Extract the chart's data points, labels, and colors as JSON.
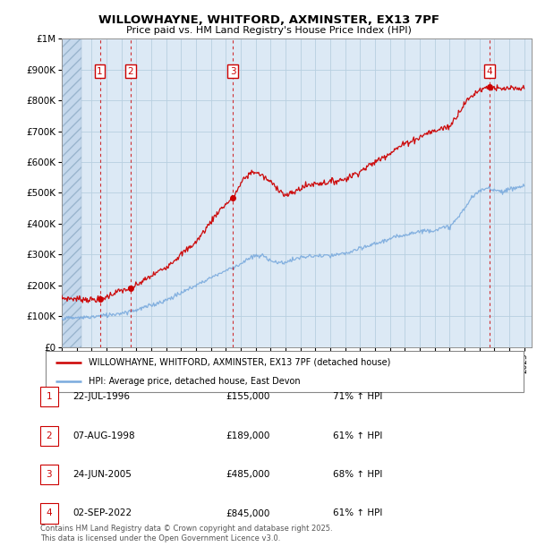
{
  "title": "WILLOWHAYNE, WHITFORD, AXMINSTER, EX13 7PF",
  "subtitle": "Price paid vs. HM Land Registry's House Price Index (HPI)",
  "ylim": [
    0,
    1000000
  ],
  "xlim_start": 1994.0,
  "xlim_end": 2025.5,
  "background_color": "#dce9f5",
  "grid_color": "#b8cfe0",
  "red_line_color": "#cc0000",
  "blue_line_color": "#7aaadd",
  "sale_points": [
    {
      "label": "1",
      "year": 1996.55,
      "price": 155000
    },
    {
      "label": "2",
      "year": 1998.6,
      "price": 189000
    },
    {
      "label": "3",
      "year": 2005.48,
      "price": 485000
    },
    {
      "label": "4",
      "year": 2022.67,
      "price": 845000
    }
  ],
  "legend_entries": [
    "WILLOWHAYNE, WHITFORD, AXMINSTER, EX13 7PF (detached house)",
    "HPI: Average price, detached house, East Devon"
  ],
  "table_rows": [
    [
      "1",
      "22-JUL-1996",
      "£155,000",
      "71% ↑ HPI"
    ],
    [
      "2",
      "07-AUG-1998",
      "£189,000",
      "61% ↑ HPI"
    ],
    [
      "3",
      "24-JUN-2005",
      "£485,000",
      "68% ↑ HPI"
    ],
    [
      "4",
      "02-SEP-2022",
      "£845,000",
      "61% ↑ HPI"
    ]
  ],
  "footnote": "Contains HM Land Registry data © Crown copyright and database right 2025.\nThis data is licensed under the Open Government Licence v3.0.",
  "yticks": [
    0,
    100000,
    200000,
    300000,
    400000,
    500000,
    600000,
    700000,
    800000,
    900000,
    1000000
  ],
  "ytick_labels": [
    "£0",
    "£100K",
    "£200K",
    "£300K",
    "£400K",
    "£500K",
    "£600K",
    "£700K",
    "£800K",
    "£900K",
    "£1M"
  ],
  "red_key_years": [
    1994.0,
    1995.5,
    1996.0,
    1996.55,
    1997.0,
    1997.5,
    1998.0,
    1998.6,
    1999.5,
    2001.0,
    2003.0,
    2004.5,
    2005.48,
    2006.2,
    2006.8,
    2007.3,
    2008.0,
    2008.5,
    2009.0,
    2009.5,
    2010.0,
    2010.5,
    2011.0,
    2012.0,
    2013.0,
    2014.0,
    2015.0,
    2016.0,
    2016.5,
    2017.0,
    2018.0,
    2018.5,
    2019.0,
    2019.5,
    2020.0,
    2021.0,
    2021.5,
    2022.0,
    2022.67,
    2023.0,
    2023.5,
    2024.0,
    2024.5,
    2025.0
  ],
  "red_key_vals": [
    158000,
    155000,
    153000,
    155000,
    162000,
    175000,
    183000,
    189000,
    215000,
    260000,
    340000,
    440000,
    485000,
    545000,
    570000,
    560000,
    535000,
    515000,
    490000,
    500000,
    515000,
    525000,
    530000,
    535000,
    545000,
    570000,
    600000,
    630000,
    645000,
    660000,
    680000,
    695000,
    700000,
    710000,
    715000,
    790000,
    815000,
    835000,
    845000,
    840000,
    835000,
    840000,
    835000,
    840000
  ],
  "blue_key_years": [
    1994.0,
    1995.0,
    1996.0,
    1997.0,
    1998.0,
    1999.0,
    2000.0,
    2001.0,
    2002.0,
    2003.0,
    2004.0,
    2005.0,
    2005.48,
    2006.0,
    2006.5,
    2007.0,
    2007.5,
    2008.0,
    2008.5,
    2009.0,
    2009.5,
    2010.0,
    2010.5,
    2011.0,
    2012.0,
    2013.0,
    2014.0,
    2015.0,
    2016.0,
    2017.0,
    2018.0,
    2019.0,
    2020.0,
    2020.5,
    2021.0,
    2021.5,
    2022.0,
    2022.5,
    2022.67,
    2023.0,
    2023.5,
    2024.0,
    2024.5,
    2025.0
  ],
  "blue_key_vals": [
    93000,
    94000,
    97000,
    103000,
    110000,
    120000,
    135000,
    152000,
    175000,
    200000,
    225000,
    248000,
    258000,
    270000,
    285000,
    295000,
    295000,
    282000,
    272000,
    275000,
    283000,
    290000,
    293000,
    295000,
    295000,
    303000,
    318000,
    335000,
    350000,
    365000,
    375000,
    380000,
    390000,
    415000,
    450000,
    485000,
    505000,
    515000,
    517000,
    510000,
    505000,
    510000,
    518000,
    522000
  ]
}
